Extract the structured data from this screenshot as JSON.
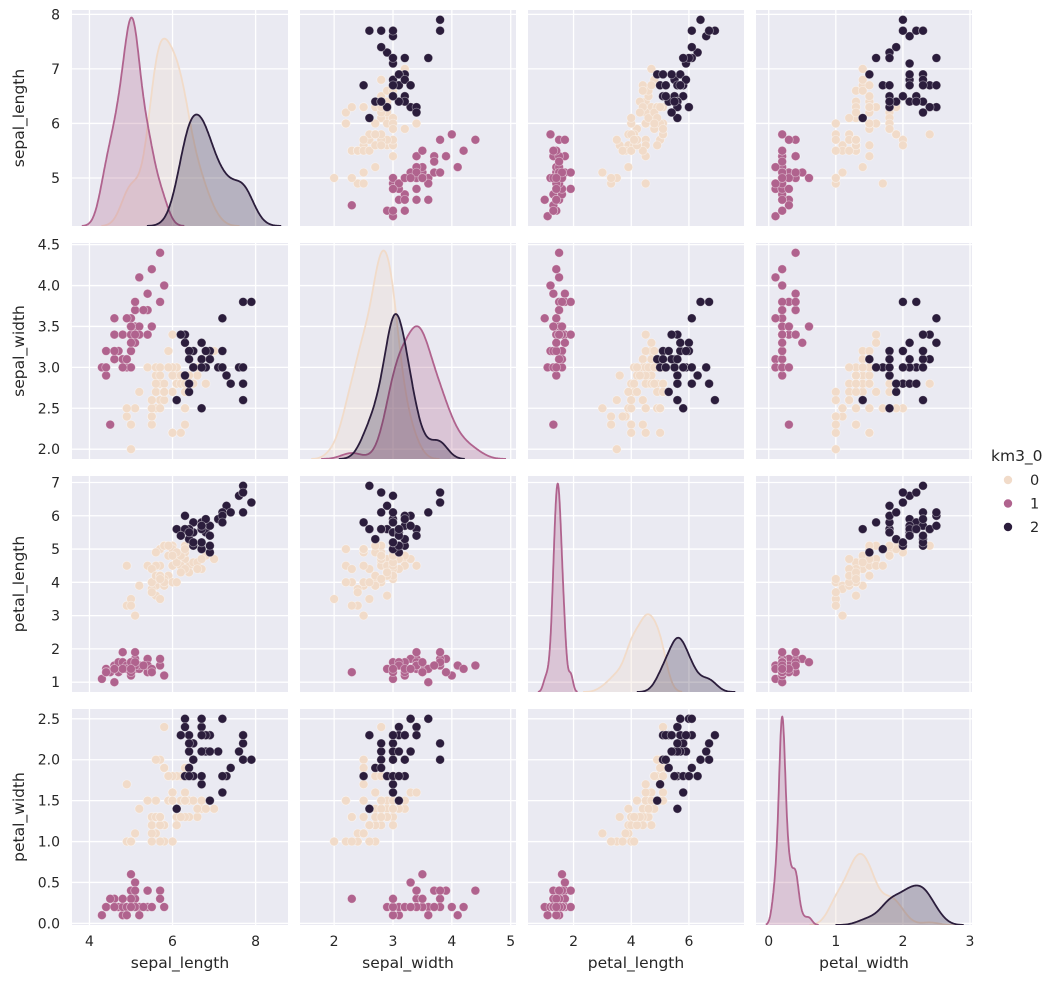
{
  "legend": {
    "title": "km3_0",
    "entries": [
      {
        "label": "0",
        "color": "#f1dbc9"
      },
      {
        "label": "1",
        "color": "#b0638e"
      },
      {
        "label": "2",
        "color": "#2b1d3c"
      }
    ]
  },
  "style": {
    "figure_bg": "#ffffff",
    "panel_bg": "#eaeaf2",
    "grid_color": "#ffffff",
    "text_color": "#262626",
    "kde_fill_opacity": 0.27,
    "kde_stroke_width": 1.8,
    "dot_radius": 4.4
  },
  "chart_data": {
    "type": "scatter",
    "kind": "pairplot",
    "diagonal": "kde",
    "variables": [
      "sepal_length",
      "sepal_width",
      "petal_length",
      "petal_width"
    ],
    "hue": {
      "name": "km3_0",
      "classes": [
        "0",
        "1",
        "2"
      ],
      "colors": [
        "#f1dbc9",
        "#b0638e",
        "#2b1d3c"
      ],
      "counts": [
        62,
        50,
        38
      ]
    },
    "legend_position": "right-center",
    "grid": true,
    "axes": {
      "xlims": [
        [
          3.58,
          8.78
        ],
        [
          1.42,
          5.09
        ],
        [
          0.42,
          7.91
        ],
        [
          -0.19,
          3.03
        ]
      ],
      "ylims": [
        [
          4.12,
          8.08
        ],
        [
          1.88,
          4.52
        ],
        [
          0.705,
          7.195
        ],
        [
          -0.02,
          2.62
        ]
      ],
      "xticks": [
        [
          4,
          6,
          8
        ],
        [
          2,
          3,
          4,
          5
        ],
        [
          2,
          4,
          6
        ],
        [
          0,
          1,
          2,
          3
        ]
      ],
      "xtick_labels": [
        [
          "4",
          "6",
          "8"
        ],
        [
          "2",
          "3",
          "4",
          "5"
        ],
        [
          "2",
          "4",
          "6"
        ],
        [
          "0",
          "1",
          "2",
          "3"
        ]
      ],
      "yticks": [
        [
          5,
          6,
          7,
          8
        ],
        [
          2.0,
          2.5,
          3.0,
          3.5,
          4.0,
          4.5
        ],
        [
          1,
          2,
          3,
          4,
          5,
          6,
          7
        ],
        [
          0.0,
          0.5,
          1.0,
          1.5,
          2.0,
          2.5
        ]
      ],
      "ytick_labels": [
        [
          "5",
          "6",
          "7",
          "8"
        ],
        [
          "2.0",
          "2.5",
          "3.0",
          "3.5",
          "4.0",
          "4.5"
        ],
        [
          "1",
          "2",
          "3",
          "4",
          "5",
          "6",
          "7"
        ],
        [
          "0.0",
          "0.5",
          "1.0",
          "1.5",
          "2.0",
          "2.5"
        ]
      ]
    },
    "points": [
      [
        5.1,
        3.5,
        1.4,
        0.2,
        1
      ],
      [
        4.9,
        3.0,
        1.4,
        0.2,
        1
      ],
      [
        4.7,
        3.2,
        1.3,
        0.2,
        1
      ],
      [
        4.6,
        3.1,
        1.5,
        0.2,
        1
      ],
      [
        5.0,
        3.6,
        1.4,
        0.2,
        1
      ],
      [
        5.4,
        3.9,
        1.7,
        0.4,
        1
      ],
      [
        4.6,
        3.4,
        1.4,
        0.3,
        1
      ],
      [
        5.0,
        3.4,
        1.5,
        0.2,
        1
      ],
      [
        4.4,
        2.9,
        1.4,
        0.2,
        1
      ],
      [
        4.9,
        3.1,
        1.5,
        0.1,
        1
      ],
      [
        5.4,
        3.7,
        1.5,
        0.2,
        1
      ],
      [
        4.8,
        3.4,
        1.6,
        0.2,
        1
      ],
      [
        4.8,
        3.0,
        1.4,
        0.1,
        1
      ],
      [
        4.3,
        3.0,
        1.1,
        0.1,
        1
      ],
      [
        5.8,
        4.0,
        1.2,
        0.2,
        1
      ],
      [
        5.7,
        4.4,
        1.5,
        0.4,
        1
      ],
      [
        5.4,
        3.9,
        1.3,
        0.4,
        1
      ],
      [
        5.1,
        3.5,
        1.4,
        0.3,
        1
      ],
      [
        5.7,
        3.8,
        1.7,
        0.3,
        1
      ],
      [
        5.1,
        3.8,
        1.5,
        0.3,
        1
      ],
      [
        5.4,
        3.4,
        1.7,
        0.2,
        1
      ],
      [
        5.1,
        3.7,
        1.5,
        0.4,
        1
      ],
      [
        4.6,
        3.6,
        1.0,
        0.2,
        1
      ],
      [
        5.1,
        3.3,
        1.7,
        0.5,
        1
      ],
      [
        4.8,
        3.4,
        1.9,
        0.2,
        1
      ],
      [
        5.0,
        3.0,
        1.6,
        0.2,
        1
      ],
      [
        5.0,
        3.4,
        1.6,
        0.4,
        1
      ],
      [
        5.2,
        3.5,
        1.5,
        0.2,
        1
      ],
      [
        5.2,
        3.4,
        1.4,
        0.2,
        1
      ],
      [
        4.7,
        3.2,
        1.6,
        0.2,
        1
      ],
      [
        4.8,
        3.1,
        1.6,
        0.2,
        1
      ],
      [
        5.4,
        3.4,
        1.5,
        0.4,
        1
      ],
      [
        5.2,
        4.1,
        1.5,
        0.1,
        1
      ],
      [
        5.5,
        4.2,
        1.4,
        0.2,
        1
      ],
      [
        4.9,
        3.1,
        1.5,
        0.2,
        1
      ],
      [
        5.0,
        3.2,
        1.2,
        0.2,
        1
      ],
      [
        5.5,
        3.5,
        1.3,
        0.2,
        1
      ],
      [
        4.9,
        3.6,
        1.4,
        0.1,
        1
      ],
      [
        4.4,
        3.0,
        1.3,
        0.2,
        1
      ],
      [
        5.1,
        3.4,
        1.5,
        0.2,
        1
      ],
      [
        5.0,
        3.5,
        1.3,
        0.3,
        1
      ],
      [
        4.5,
        2.3,
        1.3,
        0.3,
        1
      ],
      [
        4.4,
        3.2,
        1.3,
        0.2,
        1
      ],
      [
        5.0,
        3.5,
        1.6,
        0.6,
        1
      ],
      [
        5.1,
        3.8,
        1.9,
        0.4,
        1
      ],
      [
        4.8,
        3.0,
        1.4,
        0.3,
        1
      ],
      [
        5.1,
        3.8,
        1.6,
        0.2,
        1
      ],
      [
        4.6,
        3.2,
        1.4,
        0.2,
        1
      ],
      [
        5.3,
        3.7,
        1.5,
        0.2,
        1
      ],
      [
        5.0,
        3.3,
        1.4,
        0.2,
        1
      ],
      [
        7.0,
        3.2,
        4.7,
        1.4,
        0
      ],
      [
        6.4,
        3.2,
        4.5,
        1.5,
        0
      ],
      [
        6.9,
        3.1,
        4.9,
        1.5,
        2
      ],
      [
        5.5,
        2.3,
        4.0,
        1.3,
        0
      ],
      [
        6.5,
        2.8,
        4.6,
        1.5,
        0
      ],
      [
        5.7,
        2.8,
        4.5,
        1.3,
        0
      ],
      [
        6.3,
        3.3,
        4.7,
        1.6,
        0
      ],
      [
        4.9,
        2.4,
        3.3,
        1.0,
        0
      ],
      [
        6.6,
        2.9,
        4.6,
        1.3,
        0
      ],
      [
        5.2,
        2.7,
        3.9,
        1.4,
        0
      ],
      [
        5.0,
        2.0,
        3.5,
        1.0,
        0
      ],
      [
        5.9,
        3.0,
        4.2,
        1.5,
        0
      ],
      [
        6.0,
        2.2,
        4.0,
        1.0,
        0
      ],
      [
        6.1,
        2.9,
        4.7,
        1.4,
        0
      ],
      [
        5.6,
        2.9,
        3.6,
        1.3,
        0
      ],
      [
        6.7,
        3.1,
        4.4,
        1.4,
        0
      ],
      [
        5.6,
        3.0,
        4.5,
        1.5,
        0
      ],
      [
        5.8,
        2.7,
        4.1,
        1.0,
        0
      ],
      [
        6.2,
        2.2,
        4.5,
        1.5,
        0
      ],
      [
        5.6,
        2.5,
        3.9,
        1.1,
        0
      ],
      [
        5.9,
        3.2,
        4.8,
        1.8,
        0
      ],
      [
        6.1,
        2.8,
        4.0,
        1.3,
        0
      ],
      [
        6.3,
        2.5,
        4.9,
        1.5,
        0
      ],
      [
        6.1,
        2.8,
        4.7,
        1.2,
        0
      ],
      [
        6.4,
        2.9,
        4.3,
        1.3,
        0
      ],
      [
        6.6,
        3.0,
        4.4,
        1.4,
        0
      ],
      [
        6.8,
        2.8,
        4.8,
        1.4,
        0
      ],
      [
        6.7,
        3.0,
        5.0,
        1.7,
        2
      ],
      [
        6.0,
        2.9,
        4.5,
        1.5,
        0
      ],
      [
        5.7,
        2.6,
        3.5,
        1.0,
        0
      ],
      [
        5.5,
        2.4,
        3.8,
        1.1,
        0
      ],
      [
        5.5,
        2.4,
        3.7,
        1.0,
        0
      ],
      [
        5.8,
        2.7,
        3.9,
        1.2,
        0
      ],
      [
        6.0,
        2.7,
        5.1,
        1.6,
        0
      ],
      [
        5.4,
        3.0,
        4.5,
        1.5,
        0
      ],
      [
        6.0,
        3.4,
        4.5,
        1.6,
        0
      ],
      [
        6.7,
        3.1,
        4.7,
        1.5,
        0
      ],
      [
        6.3,
        2.3,
        4.4,
        1.3,
        0
      ],
      [
        5.6,
        3.0,
        4.1,
        1.3,
        0
      ],
      [
        5.5,
        2.5,
        4.0,
        1.3,
        0
      ],
      [
        5.5,
        2.6,
        4.4,
        1.2,
        0
      ],
      [
        6.1,
        3.0,
        4.6,
        1.4,
        0
      ],
      [
        5.8,
        2.6,
        4.0,
        1.2,
        0
      ],
      [
        5.0,
        2.3,
        3.3,
        1.0,
        0
      ],
      [
        5.6,
        2.7,
        4.2,
        1.3,
        0
      ],
      [
        5.7,
        3.0,
        4.2,
        1.2,
        0
      ],
      [
        5.7,
        2.9,
        4.2,
        1.3,
        0
      ],
      [
        6.2,
        2.9,
        4.3,
        1.3,
        0
      ],
      [
        5.1,
        2.5,
        3.0,
        1.1,
        0
      ],
      [
        5.7,
        2.8,
        4.1,
        1.3,
        0
      ],
      [
        6.3,
        3.3,
        6.0,
        2.5,
        2
      ],
      [
        5.8,
        2.7,
        5.1,
        1.9,
        0
      ],
      [
        7.1,
        3.0,
        5.9,
        2.1,
        2
      ],
      [
        6.3,
        2.9,
        5.6,
        1.8,
        2
      ],
      [
        6.5,
        3.0,
        5.8,
        2.2,
        2
      ],
      [
        7.6,
        3.0,
        6.6,
        2.1,
        2
      ],
      [
        4.9,
        2.5,
        4.5,
        1.7,
        0
      ],
      [
        7.3,
        2.9,
        6.3,
        1.8,
        2
      ],
      [
        6.7,
        2.5,
        5.8,
        1.8,
        2
      ],
      [
        7.2,
        3.6,
        6.1,
        2.5,
        2
      ],
      [
        6.5,
        3.2,
        5.1,
        2.0,
        2
      ],
      [
        6.4,
        2.7,
        5.3,
        1.9,
        2
      ],
      [
        6.8,
        3.0,
        5.5,
        2.1,
        2
      ],
      [
        5.7,
        2.5,
        5.0,
        2.0,
        0
      ],
      [
        5.8,
        2.8,
        5.1,
        2.4,
        0
      ],
      [
        6.4,
        3.2,
        5.3,
        2.3,
        2
      ],
      [
        6.5,
        3.0,
        5.5,
        1.8,
        2
      ],
      [
        7.7,
        3.8,
        6.7,
        2.2,
        2
      ],
      [
        7.7,
        2.6,
        6.9,
        2.3,
        2
      ],
      [
        6.0,
        2.2,
        5.0,
        1.5,
        0
      ],
      [
        6.9,
        3.2,
        5.7,
        2.3,
        2
      ],
      [
        5.6,
        2.8,
        4.9,
        2.0,
        0
      ],
      [
        7.7,
        2.8,
        6.7,
        2.0,
        2
      ],
      [
        6.3,
        2.7,
        4.9,
        1.8,
        0
      ],
      [
        6.7,
        3.3,
        5.7,
        2.1,
        2
      ],
      [
        7.2,
        3.2,
        6.0,
        1.8,
        2
      ],
      [
        6.2,
        2.8,
        4.8,
        1.8,
        0
      ],
      [
        6.1,
        3.0,
        4.9,
        1.8,
        0
      ],
      [
        6.4,
        2.8,
        5.6,
        2.1,
        2
      ],
      [
        7.2,
        3.0,
        5.8,
        1.6,
        2
      ],
      [
        7.4,
        2.8,
        6.1,
        1.9,
        2
      ],
      [
        7.9,
        3.8,
        6.4,
        2.0,
        2
      ],
      [
        6.4,
        2.8,
        5.6,
        2.2,
        2
      ],
      [
        6.3,
        2.8,
        5.1,
        1.5,
        0
      ],
      [
        6.1,
        2.6,
        5.6,
        1.4,
        2
      ],
      [
        7.7,
        3.0,
        6.1,
        2.3,
        2
      ],
      [
        6.3,
        3.4,
        5.6,
        2.4,
        2
      ],
      [
        6.4,
        3.1,
        5.5,
        1.8,
        2
      ],
      [
        6.0,
        3.0,
        4.8,
        1.8,
        0
      ],
      [
        6.9,
        3.1,
        5.4,
        2.1,
        2
      ],
      [
        6.7,
        3.1,
        5.6,
        2.4,
        2
      ],
      [
        6.9,
        3.1,
        5.1,
        2.3,
        2
      ],
      [
        5.8,
        2.7,
        5.1,
        1.9,
        0
      ],
      [
        6.8,
        3.2,
        5.9,
        2.3,
        2
      ],
      [
        6.7,
        3.3,
        5.7,
        2.5,
        2
      ],
      [
        6.7,
        3.0,
        5.2,
        2.3,
        2
      ],
      [
        6.3,
        2.5,
        5.0,
        1.9,
        0
      ],
      [
        6.5,
        3.0,
        5.2,
        2.0,
        2
      ],
      [
        6.2,
        3.4,
        5.4,
        2.3,
        2
      ],
      [
        5.9,
        3.0,
        5.1,
        1.8,
        0
      ]
    ]
  }
}
